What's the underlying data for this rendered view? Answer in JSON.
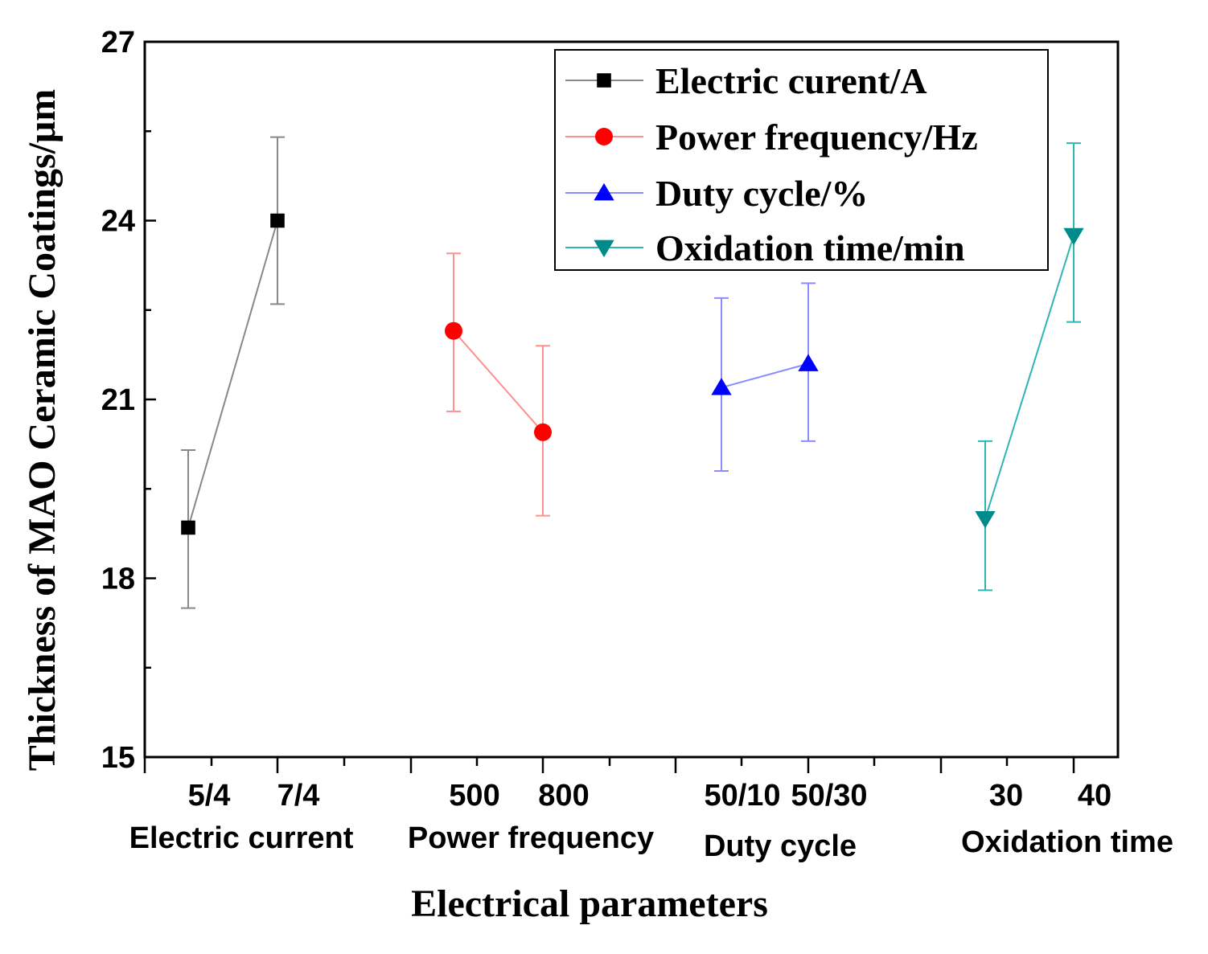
{
  "chart_data": {
    "type": "line",
    "xlabel": "Electrical parameters",
    "ylabel": "Thickness of MAO Ceramic Coatings/μm",
    "ylim": [
      15,
      27
    ],
    "yticks": [
      "15",
      "18",
      "21",
      "24",
      "27"
    ],
    "grid": false,
    "legend_position": "top-right",
    "groups": [
      {
        "label": "Electric current",
        "categories": [
          "5/4",
          "7/4"
        ]
      },
      {
        "label": "Power frequency",
        "categories": [
          "500",
          "800"
        ]
      },
      {
        "label": "Duty cycle",
        "categories": [
          "50/10",
          "50/30"
        ]
      },
      {
        "label": "Oxidation time",
        "categories": [
          "30",
          "40"
        ]
      }
    ],
    "series": [
      {
        "name": "Electric curent/A",
        "color": "#000000",
        "line_color": "#888888",
        "marker": "square",
        "group": 0,
        "values": [
          18.85,
          24.0
        ],
        "err_low": [
          17.5,
          22.6
        ],
        "err_high": [
          20.15,
          25.4
        ]
      },
      {
        "name": "Power frequency/Hz",
        "color": "#ff0000",
        "line_color": "#ff9090",
        "marker": "circle",
        "group": 1,
        "values": [
          22.15,
          20.45
        ],
        "err_low": [
          20.8,
          19.05
        ],
        "err_high": [
          23.45,
          21.9
        ]
      },
      {
        "name": "Duty cycle/%",
        "color": "#0000ff",
        "line_color": "#8c8cff",
        "marker": "triangle-up",
        "group": 2,
        "values": [
          21.2,
          21.6
        ],
        "err_low": [
          19.8,
          20.3
        ],
        "err_high": [
          22.7,
          22.95
        ]
      },
      {
        "name": "Oxidation time/min",
        "color": "#008b8b",
        "line_color": "#2eb5b5",
        "marker": "triangle-down",
        "group": 3,
        "values": [
          19.0,
          23.75
        ],
        "err_low": [
          17.8,
          22.3
        ],
        "err_high": [
          20.3,
          25.3
        ]
      }
    ]
  }
}
